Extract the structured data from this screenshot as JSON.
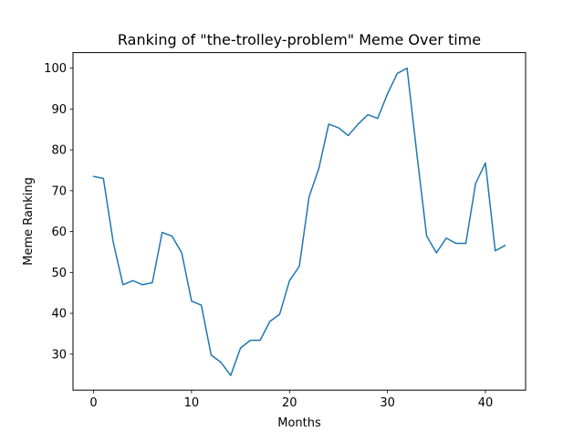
{
  "chart_data": {
    "type": "line",
    "title": "Ranking of \"the-trolley-problem\" Meme Over time",
    "xlabel": "Months",
    "ylabel": "Meme Ranking",
    "xlim": [
      -2.1,
      44.1
    ],
    "ylim": [
      21.2,
      103.8
    ],
    "xticks": [
      0,
      10,
      20,
      30,
      40
    ],
    "yticks": [
      30,
      40,
      50,
      60,
      70,
      80,
      90,
      100
    ],
    "grid": false,
    "legend": false,
    "series": [
      {
        "color": "#1f77b4",
        "x": [
          0,
          1,
          2,
          3,
          4,
          5,
          6,
          7,
          8,
          9,
          10,
          11,
          12,
          13,
          14,
          15,
          16,
          17,
          18,
          19,
          20,
          21,
          22,
          23,
          24,
          25,
          26,
          27,
          28,
          29,
          30,
          31,
          32,
          33,
          34,
          35,
          36,
          37,
          38,
          39,
          40,
          41,
          42
        ],
        "values": [
          73.5,
          73.0,
          57.5,
          47.0,
          48.0,
          47.0,
          47.5,
          59.8,
          58.9,
          54.8,
          43.0,
          42.0,
          29.8,
          28.0,
          24.8,
          31.5,
          33.4,
          33.4,
          38.0,
          39.8,
          48.0,
          51.5,
          68.5,
          75.5,
          86.3,
          85.4,
          83.5,
          86.3,
          88.6,
          87.7,
          93.7,
          98.7,
          100.0,
          79.0,
          58.9,
          54.8,
          58.4,
          57.1,
          57.1,
          71.8,
          76.8,
          55.3,
          56.6
        ]
      }
    ]
  }
}
